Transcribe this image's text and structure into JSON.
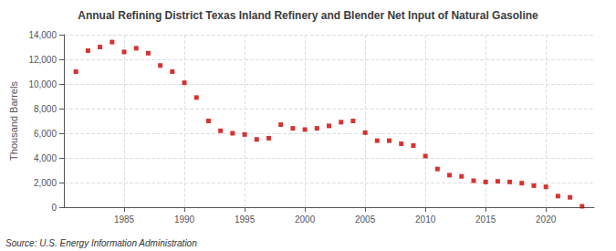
{
  "chart_data": {
    "type": "scatter",
    "title": "Annual Refining District Texas Inland Refinery and Blender Net Input of Natural Gasoline",
    "ylabel": "Thousand Barrels",
    "annotations": [
      "Source: U.S. Energy Information Administration"
    ],
    "x": [
      1981,
      1982,
      1983,
      1984,
      1985,
      1986,
      1987,
      1988,
      1989,
      1990,
      1991,
      1992,
      1993,
      1994,
      1995,
      1996,
      1997,
      1998,
      1999,
      2000,
      2001,
      2002,
      2003,
      2004,
      2005,
      2006,
      2007,
      2008,
      2009,
      2010,
      2011,
      2012,
      2013,
      2014,
      2015,
      2016,
      2017,
      2018,
      2019,
      2020,
      2021,
      2022,
      2023
    ],
    "values": [
      11000,
      12700,
      13000,
      13400,
      12600,
      12900,
      12500,
      11500,
      11000,
      10100,
      8900,
      7000,
      6200,
      6000,
      5900,
      5500,
      5600,
      6700,
      6400,
      6300,
      6400,
      6600,
      6900,
      7000,
      6050,
      5400,
      5400,
      5150,
      5000,
      4150,
      3100,
      2600,
      2500,
      2150,
      2050,
      2100,
      2050,
      1950,
      1750,
      1650,
      900,
      800,
      75
    ],
    "color": "#cc0000",
    "marker": "square",
    "xlim": [
      1980,
      2024
    ],
    "xticks": [
      1985,
      1990,
      1995,
      2000,
      2005,
      2010,
      2015,
      2020
    ],
    "ylim": [
      0,
      14000
    ],
    "yticks": [
      0,
      {
        "value": 2000,
        "label": "2,000"
      },
      {
        "value": 4000,
        "label": "4,000"
      },
      {
        "value": 6000,
        "label": "6,000"
      },
      {
        "value": 8000,
        "label": "8,000"
      },
      {
        "value": 10000,
        "label": "10,000"
      },
      {
        "value": 12000,
        "label": "12,000"
      },
      {
        "value": 14000,
        "label": "14,000"
      }
    ],
    "grid": true
  }
}
